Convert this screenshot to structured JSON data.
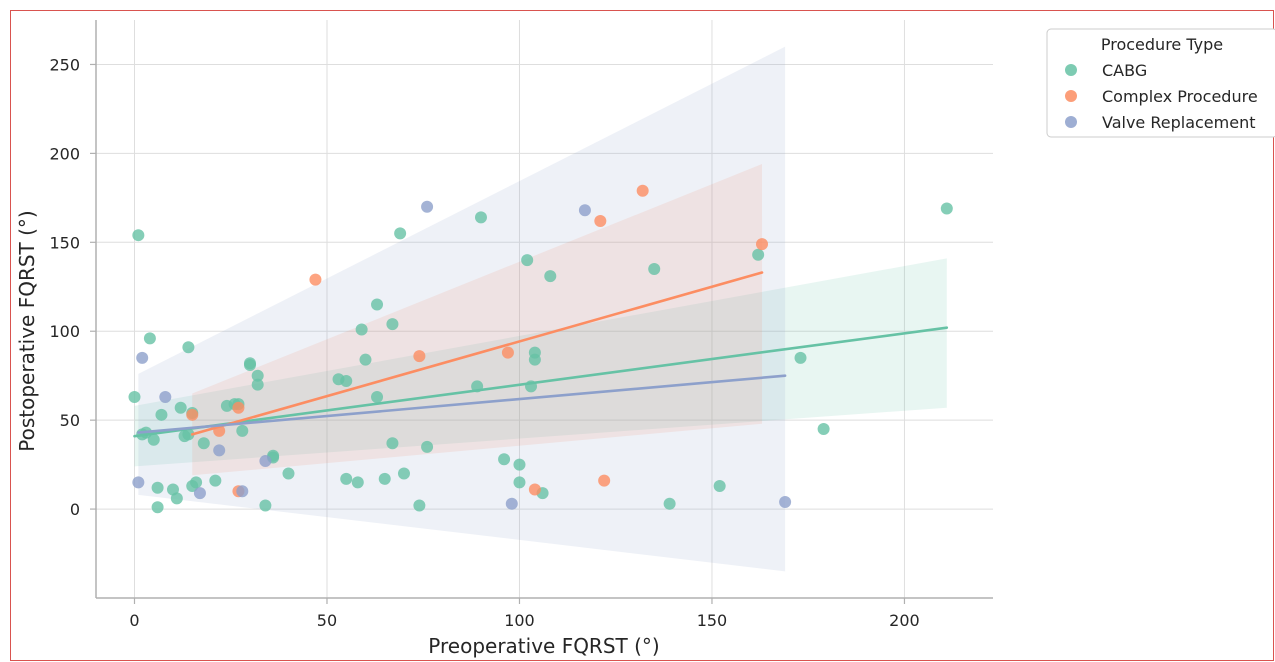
{
  "chart_data": {
    "type": "scatter",
    "title": "",
    "xlabel": "Preoperative FQRST (°)",
    "ylabel": "Postoperative FQRST (°)",
    "xlim": [
      -10,
      223
    ],
    "ylim": [
      -50,
      275
    ],
    "xticks": [
      0,
      50,
      100,
      150,
      200
    ],
    "yticks": [
      0,
      50,
      100,
      150,
      200,
      250
    ],
    "grid": true,
    "legend": {
      "title": "Procedure Type",
      "placement": "top-right outside"
    },
    "series": [
      {
        "name": "CABG",
        "color": "#66c2a5",
        "points": [
          [
            0,
            63
          ],
          [
            1,
            154
          ],
          [
            2,
            42
          ],
          [
            3,
            43
          ],
          [
            4,
            96
          ],
          [
            5,
            39
          ],
          [
            6,
            12
          ],
          [
            6,
            1
          ],
          [
            7,
            53
          ],
          [
            10,
            11
          ],
          [
            11,
            6
          ],
          [
            12,
            57
          ],
          [
            13,
            41
          ],
          [
            14,
            91
          ],
          [
            14,
            42
          ],
          [
            15,
            54
          ],
          [
            15,
            13
          ],
          [
            16,
            15
          ],
          [
            18,
            37
          ],
          [
            21,
            16
          ],
          [
            24,
            58
          ],
          [
            26,
            59
          ],
          [
            27,
            59
          ],
          [
            28,
            44
          ],
          [
            30,
            81
          ],
          [
            30,
            82
          ],
          [
            32,
            75
          ],
          [
            32,
            70
          ],
          [
            34,
            2
          ],
          [
            36,
            29
          ],
          [
            36,
            30
          ],
          [
            40,
            20
          ],
          [
            53,
            73
          ],
          [
            55,
            72
          ],
          [
            55,
            17
          ],
          [
            58,
            15
          ],
          [
            59,
            101
          ],
          [
            60,
            84
          ],
          [
            63,
            115
          ],
          [
            63,
            63
          ],
          [
            65,
            17
          ],
          [
            67,
            104
          ],
          [
            67,
            37
          ],
          [
            69,
            155
          ],
          [
            70,
            20
          ],
          [
            74,
            2
          ],
          [
            76,
            35
          ],
          [
            89,
            69
          ],
          [
            90,
            164
          ],
          [
            96,
            28
          ],
          [
            100,
            25
          ],
          [
            100,
            15
          ],
          [
            102,
            140
          ],
          [
            103,
            69
          ],
          [
            104,
            88
          ],
          [
            104,
            84
          ],
          [
            106,
            9
          ],
          [
            108,
            131
          ],
          [
            135,
            135
          ],
          [
            139,
            3
          ],
          [
            152,
            13
          ],
          [
            162,
            143
          ],
          [
            173,
            85
          ],
          [
            179,
            45
          ],
          [
            211,
            169
          ]
        ],
        "fit": {
          "x": [
            0,
            211
          ],
          "y": [
            41,
            102
          ]
        },
        "ci": {
          "x": [
            0,
            211
          ],
          "upper": [
            58,
            141
          ],
          "lower": [
            24,
            57
          ]
        }
      },
      {
        "name": "Complex Procedure",
        "color": "#fc8d62",
        "points": [
          [
            15,
            53
          ],
          [
            22,
            44
          ],
          [
            27,
            10
          ],
          [
            27,
            57
          ],
          [
            47,
            129
          ],
          [
            74,
            86
          ],
          [
            97,
            88
          ],
          [
            104,
            11
          ],
          [
            121,
            162
          ],
          [
            122,
            16
          ],
          [
            132,
            179
          ],
          [
            163,
            149
          ]
        ],
        "fit": {
          "x": [
            15,
            163
          ],
          "y": [
            42,
            133
          ]
        },
        "ci": {
          "x": [
            15,
            163
          ],
          "upper": [
            65,
            194
          ],
          "lower": [
            19,
            48
          ]
        }
      },
      {
        "name": "Valve Replacement",
        "color": "#8da0cb",
        "points": [
          [
            1,
            15
          ],
          [
            2,
            85
          ],
          [
            8,
            63
          ],
          [
            17,
            9
          ],
          [
            22,
            33
          ],
          [
            28,
            10
          ],
          [
            34,
            27
          ],
          [
            76,
            170
          ],
          [
            98,
            3
          ],
          [
            117,
            168
          ],
          [
            169,
            4
          ]
        ],
        "fit": {
          "x": [
            1,
            169
          ],
          "y": [
            43,
            75
          ]
        },
        "ci": {
          "x": [
            1,
            169
          ],
          "upper": [
            76,
            260
          ],
          "lower": [
            8,
            -35
          ]
        }
      }
    ]
  }
}
